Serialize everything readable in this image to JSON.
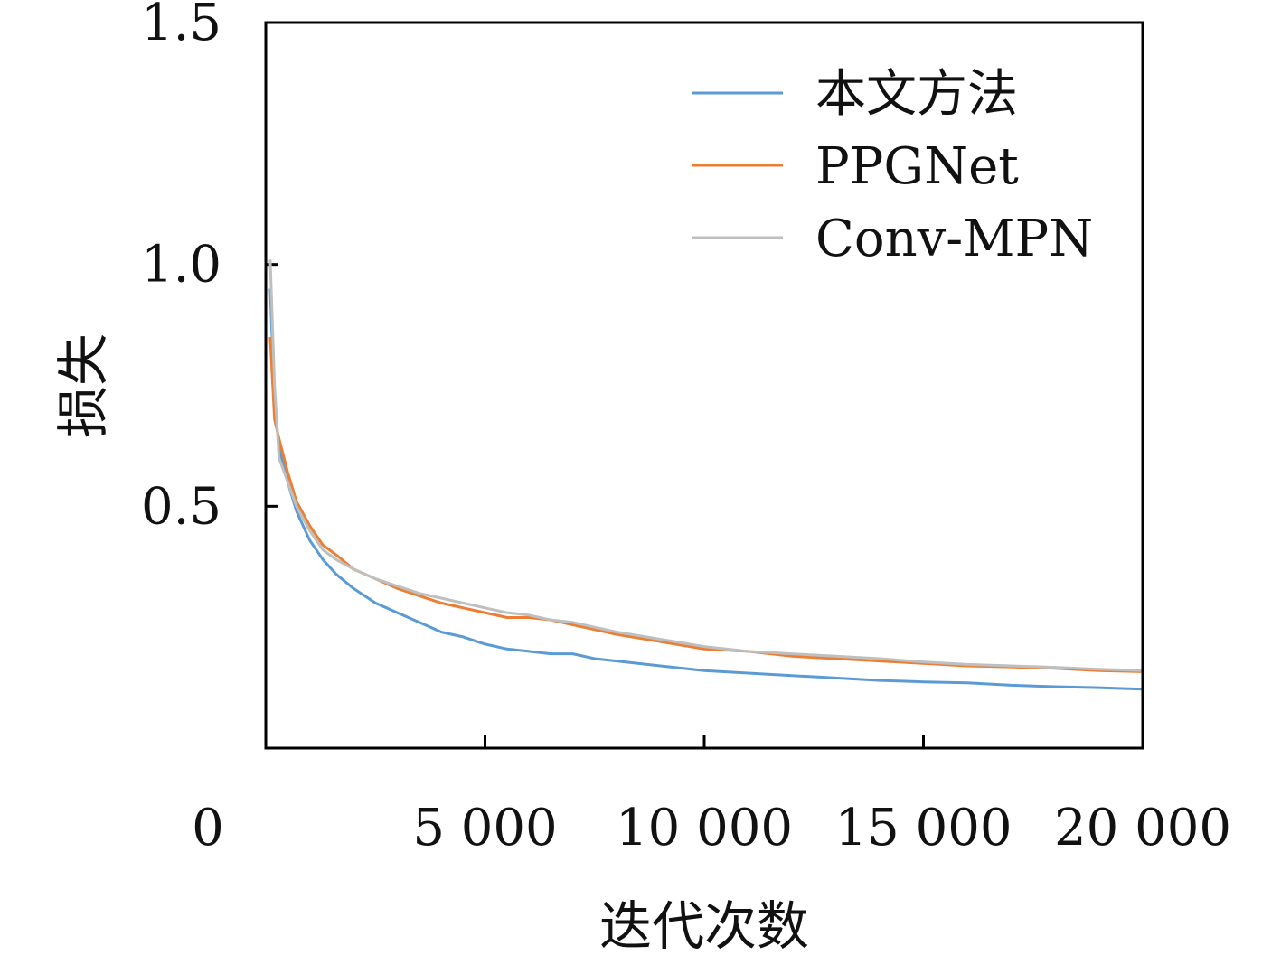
{
  "chart_data": {
    "type": "line",
    "title": "",
    "xlabel": "迭代次数",
    "ylabel": "损失",
    "xlim": [
      0,
      20000
    ],
    "ylim": [
      0,
      1.5
    ],
    "xticks": [
      0,
      5000,
      10000,
      15000,
      20000
    ],
    "xtick_labels": [
      "0",
      "5 000",
      "10 000",
      "15 000",
      "20 000"
    ],
    "yticks": [
      0.5,
      1.0,
      1.5
    ],
    "ytick_labels": [
      "0.5",
      "1.0",
      "1.5"
    ],
    "grid": false,
    "legend_position": "top-right",
    "series": [
      {
        "name": "本文方法",
        "color": "#5b9bd5",
        "x": [
          100,
          200,
          300,
          500,
          700,
          1000,
          1300,
          1600,
          2000,
          2500,
          3000,
          3500,
          4000,
          4500,
          5000,
          5500,
          6000,
          6500,
          7000,
          7500,
          8000,
          9000,
          10000,
          11000,
          12000,
          13000,
          14000,
          15000,
          16000,
          17000,
          18000,
          19000,
          20000
        ],
        "y": [
          0.95,
          0.72,
          0.62,
          0.55,
          0.49,
          0.43,
          0.39,
          0.36,
          0.33,
          0.3,
          0.28,
          0.26,
          0.24,
          0.23,
          0.215,
          0.205,
          0.2,
          0.195,
          0.195,
          0.185,
          0.18,
          0.17,
          0.16,
          0.155,
          0.15,
          0.145,
          0.14,
          0.137,
          0.135,
          0.13,
          0.127,
          0.125,
          0.122
        ]
      },
      {
        "name": "PPGNet",
        "color": "#ed7d31",
        "x": [
          100,
          200,
          300,
          500,
          700,
          1000,
          1300,
          1600,
          2000,
          2500,
          3000,
          3500,
          4000,
          4500,
          5000,
          5500,
          6000,
          6500,
          7000,
          7500,
          8000,
          9000,
          10000,
          11000,
          12000,
          13000,
          14000,
          15000,
          16000,
          17000,
          18000,
          19000,
          20000
        ],
        "y": [
          0.85,
          0.68,
          0.64,
          0.57,
          0.51,
          0.46,
          0.42,
          0.4,
          0.37,
          0.35,
          0.33,
          0.315,
          0.3,
          0.29,
          0.28,
          0.27,
          0.27,
          0.265,
          0.255,
          0.245,
          0.235,
          0.22,
          0.205,
          0.2,
          0.19,
          0.185,
          0.18,
          0.175,
          0.17,
          0.168,
          0.165,
          0.16,
          0.158
        ]
      },
      {
        "name": "Conv-MPN",
        "color": "#bfbfbf",
        "x": [
          100,
          200,
          300,
          500,
          700,
          1000,
          1300,
          1600,
          2000,
          2500,
          3000,
          3500,
          4000,
          4500,
          5000,
          5500,
          6000,
          6500,
          7000,
          7500,
          8000,
          9000,
          10000,
          11000,
          12000,
          13000,
          14000,
          15000,
          16000,
          17000,
          18000,
          19000,
          20000
        ],
        "y": [
          1.01,
          0.75,
          0.6,
          0.55,
          0.5,
          0.45,
          0.41,
          0.39,
          0.37,
          0.35,
          0.335,
          0.32,
          0.31,
          0.3,
          0.29,
          0.28,
          0.275,
          0.265,
          0.26,
          0.25,
          0.24,
          0.225,
          0.21,
          0.2,
          0.195,
          0.19,
          0.185,
          0.178,
          0.173,
          0.17,
          0.167,
          0.163,
          0.16
        ]
      }
    ]
  }
}
